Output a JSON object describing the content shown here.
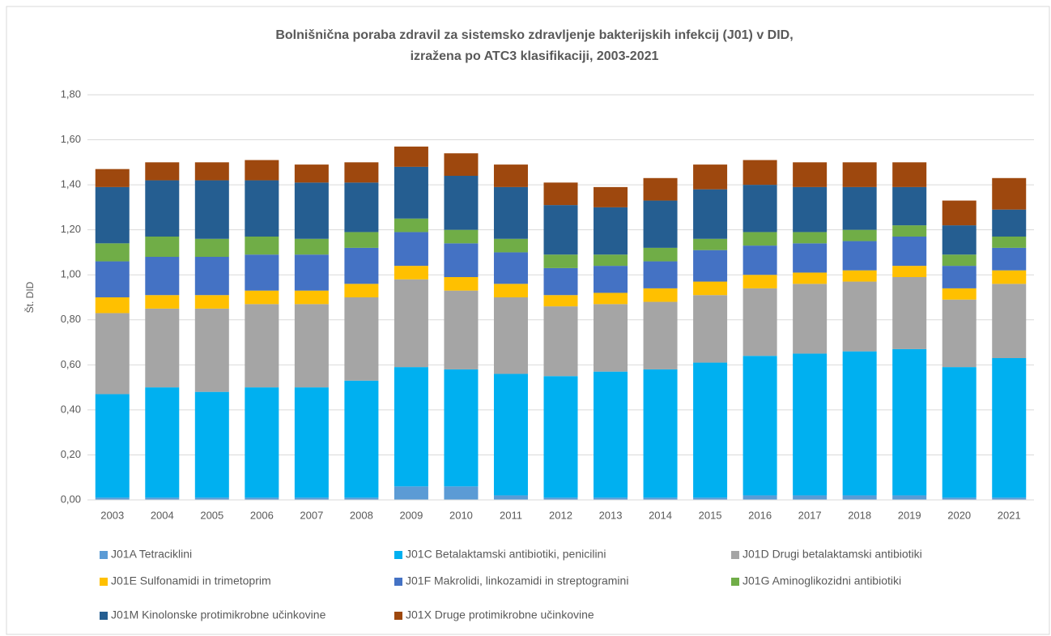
{
  "chart_data": {
    "type": "stacked_bar",
    "title": [
      "Bolnišnična poraba zdravil za sistemsko zdravljenje bakterijskih infekcij (J01) v DID,",
      "izražena po ATC3 klasifikaciji, 2003-2021"
    ],
    "y_label": "Št. DID",
    "categories": [
      "2003",
      "2004",
      "2005",
      "2006",
      "2007",
      "2008",
      "2009",
      "2010",
      "2011",
      "2012",
      "2013",
      "2014",
      "2015",
      "2016",
      "2017",
      "2018",
      "2019",
      "2020",
      "2021"
    ],
    "series": [
      {
        "name": "J01A Tetraciklini",
        "color": "#5b9bd5",
        "values": [
          0.01,
          0.01,
          0.01,
          0.01,
          0.01,
          0.01,
          0.06,
          0.06,
          0.02,
          0.01,
          0.01,
          0.01,
          0.01,
          0.02,
          0.02,
          0.02,
          0.02,
          0.01,
          0.01
        ]
      },
      {
        "name": "J01C Betalaktamski antibiotiki, penicilini",
        "color": "#00b0f0",
        "values": [
          0.46,
          0.49,
          0.47,
          0.49,
          0.49,
          0.52,
          0.53,
          0.52,
          0.54,
          0.54,
          0.56,
          0.57,
          0.6,
          0.62,
          0.63,
          0.64,
          0.65,
          0.58,
          0.62
        ]
      },
      {
        "name": "J01D Drugi betalaktamski antibiotiki",
        "color": "#a5a5a5",
        "values": [
          0.36,
          0.35,
          0.37,
          0.37,
          0.37,
          0.37,
          0.39,
          0.35,
          0.34,
          0.31,
          0.3,
          0.3,
          0.3,
          0.3,
          0.31,
          0.31,
          0.32,
          0.3,
          0.33
        ]
      },
      {
        "name": "J01E Sulfonamidi in trimetoprim",
        "color": "#ffc000",
        "values": [
          0.07,
          0.06,
          0.06,
          0.06,
          0.06,
          0.06,
          0.06,
          0.06,
          0.06,
          0.05,
          0.05,
          0.06,
          0.06,
          0.06,
          0.05,
          0.05,
          0.05,
          0.05,
          0.06
        ]
      },
      {
        "name": "J01F Makrolidi, linkozamidi in streptogramini",
        "color": "#4472c4",
        "values": [
          0.16,
          0.17,
          0.17,
          0.16,
          0.16,
          0.16,
          0.15,
          0.15,
          0.14,
          0.12,
          0.12,
          0.12,
          0.14,
          0.13,
          0.13,
          0.13,
          0.13,
          0.1,
          0.1
        ]
      },
      {
        "name": "J01G Aminoglikozidni antibiotiki",
        "color": "#70ad47",
        "values": [
          0.08,
          0.09,
          0.08,
          0.08,
          0.07,
          0.07,
          0.06,
          0.06,
          0.06,
          0.06,
          0.05,
          0.06,
          0.05,
          0.06,
          0.05,
          0.05,
          0.05,
          0.05,
          0.05
        ]
      },
      {
        "name": "J01M Kinolonske protimikrobne učinkovine",
        "color": "#255e91",
        "values": [
          0.25,
          0.25,
          0.26,
          0.25,
          0.25,
          0.22,
          0.23,
          0.24,
          0.23,
          0.22,
          0.21,
          0.21,
          0.22,
          0.21,
          0.2,
          0.19,
          0.17,
          0.13,
          0.12
        ]
      },
      {
        "name": "J01X Druge protimikrobne učinkovine",
        "color": "#9e480e",
        "values": [
          0.08,
          0.08,
          0.08,
          0.09,
          0.08,
          0.09,
          0.09,
          0.1,
          0.1,
          0.1,
          0.09,
          0.1,
          0.11,
          0.11,
          0.11,
          0.11,
          0.11,
          0.11,
          0.14
        ]
      }
    ],
    "ylim": [
      0,
      1.8
    ],
    "yticks": [
      {
        "value": 0,
        "label": "0,00"
      },
      {
        "value": 0.2,
        "label": "0,20"
      },
      {
        "value": 0.4,
        "label": "0,40"
      },
      {
        "value": 0.6,
        "label": "0,60"
      },
      {
        "value": 0.8,
        "label": "0,80"
      },
      {
        "value": 1.0,
        "label": "1,00"
      },
      {
        "value": 1.2,
        "label": "1,20"
      },
      {
        "value": 1.4,
        "label": "1,40"
      },
      {
        "value": 1.6,
        "label": "1,60"
      },
      {
        "value": 1.8,
        "label": "1,80"
      }
    ],
    "grid": true,
    "legend": "bottom"
  }
}
